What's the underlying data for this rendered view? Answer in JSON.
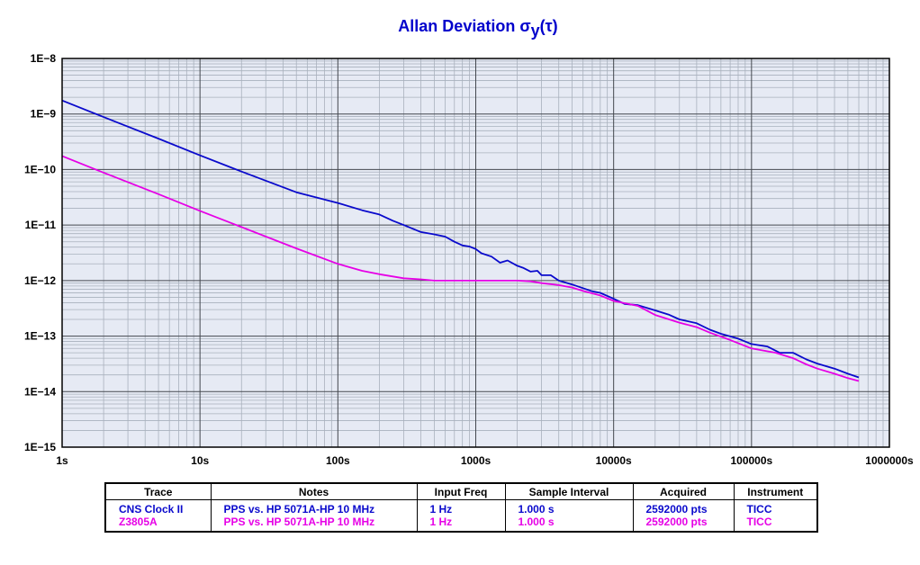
{
  "chart_data": {
    "type": "line",
    "title": "Allan Deviation σ",
    "title_subscript": "y",
    "title_suffix": "(τ)",
    "x_scale": "log",
    "y_scale": "log",
    "xlim": [
      1,
      1000000
    ],
    "ylim": [
      1e-15,
      1e-08
    ],
    "x_ticks": [
      1,
      10,
      100,
      1000,
      10000,
      100000,
      1000000
    ],
    "x_tick_labels": [
      "1s",
      "10s",
      "100s",
      "1000s",
      "10000s",
      "100000s",
      "1000000s"
    ],
    "y_ticks": [
      1e-08,
      1e-09,
      1e-10,
      1e-11,
      1e-12,
      1e-13,
      1e-14,
      1e-15
    ],
    "y_tick_labels": [
      "1E−8",
      "1E−9",
      "1E−10",
      "1E−11",
      "1E−12",
      "1E−13",
      "1E−14",
      "1E−15"
    ],
    "grid": true,
    "plot_background": "#e6eaf4",
    "series": [
      {
        "name": "CNS Clock II",
        "color": "#0a0acc",
        "x": [
          1,
          2,
          5,
          10,
          20,
          50,
          100,
          150,
          200,
          250,
          300,
          400,
          500,
          600,
          700,
          800,
          900,
          1000,
          1100,
          1300,
          1500,
          1700,
          2000,
          2200,
          2500,
          2800,
          3000,
          3500,
          4000,
          5000,
          6000,
          7000,
          8000,
          10000,
          12000,
          15000,
          20000,
          25000,
          30000,
          40000,
          50000,
          60000,
          80000,
          100000,
          130000,
          160000,
          200000,
          250000,
          300000,
          400000,
          500000,
          600000
        ],
        "y": [
          1.75e-09,
          8.8e-10,
          3.6e-10,
          1.8e-10,
          9.2e-11,
          3.9e-11,
          2.5e-11,
          1.85e-11,
          1.55e-11,
          1.2e-11,
          1e-11,
          7.5e-12,
          6.8e-12,
          6.2e-12,
          5e-12,
          4.3e-12,
          4.1e-12,
          3.7e-12,
          3.1e-12,
          2.7e-12,
          2.1e-12,
          2.3e-12,
          1.85e-12,
          1.7e-12,
          1.45e-12,
          1.5e-12,
          1.25e-12,
          1.25e-12,
          1e-12,
          8.5e-13,
          7.3e-13,
          6.4e-13,
          6e-13,
          4.7e-13,
          3.8e-13,
          3.6e-13,
          2.9e-13,
          2.45e-13,
          2e-13,
          1.7e-13,
          1.3e-13,
          1.1e-13,
          9e-14,
          7.2e-14,
          6.5e-14,
          5e-14,
          5e-14,
          3.8e-14,
          3.2e-14,
          2.6e-14,
          2.1e-14,
          1.8e-14
        ]
      },
      {
        "name": "Z3805A",
        "color": "#e600e6",
        "x": [
          1,
          2,
          5,
          10,
          20,
          50,
          100,
          150,
          200,
          300,
          400,
          500,
          700,
          1000,
          1500,
          2000,
          2500,
          3000,
          4000,
          5000,
          6000,
          8000,
          10000,
          15000,
          20000,
          30000,
          40000,
          50000,
          70000,
          100000,
          150000,
          200000,
          250000,
          300000,
          400000,
          500000,
          600000
        ],
        "y": [
          1.75e-10,
          8.8e-11,
          3.6e-11,
          1.8e-11,
          9.2e-12,
          3.8e-12,
          2e-12,
          1.5e-12,
          1.3e-12,
          1.1e-12,
          1.05e-12,
          1e-12,
          1e-12,
          1e-12,
          1e-12,
          1e-12,
          9.7e-13,
          9e-13,
          8.3e-13,
          7.5e-13,
          6.5e-13,
          5.4e-13,
          4.3e-13,
          3.5e-13,
          2.4e-13,
          1.75e-13,
          1.45e-13,
          1.15e-13,
          8.5e-14,
          6e-14,
          5e-14,
          4e-14,
          3.1e-14,
          2.6e-14,
          2.1e-14,
          1.75e-14,
          1.55e-14
        ]
      }
    ]
  },
  "legend_table": {
    "headers": [
      "Trace",
      "Notes",
      "Input Freq",
      "Sample Interval",
      "Acquired",
      "Instrument"
    ],
    "rows": [
      {
        "trace": "CNS Clock II",
        "notes": "PPS vs. HP 5071A-HP 10 MHz",
        "input_freq": "1 Hz",
        "sample_interval": "1.000 s",
        "acquired": "2592000 pts",
        "instrument": "TICC",
        "color": "#0a0acc"
      },
      {
        "trace": "Z3805A",
        "notes": "PPS vs. HP 5071A-HP 10 MHz",
        "input_freq": "1 Hz",
        "sample_interval": "1.000 s",
        "acquired": "2592000 pts",
        "instrument": "TICC",
        "color": "#e600e6"
      }
    ]
  }
}
